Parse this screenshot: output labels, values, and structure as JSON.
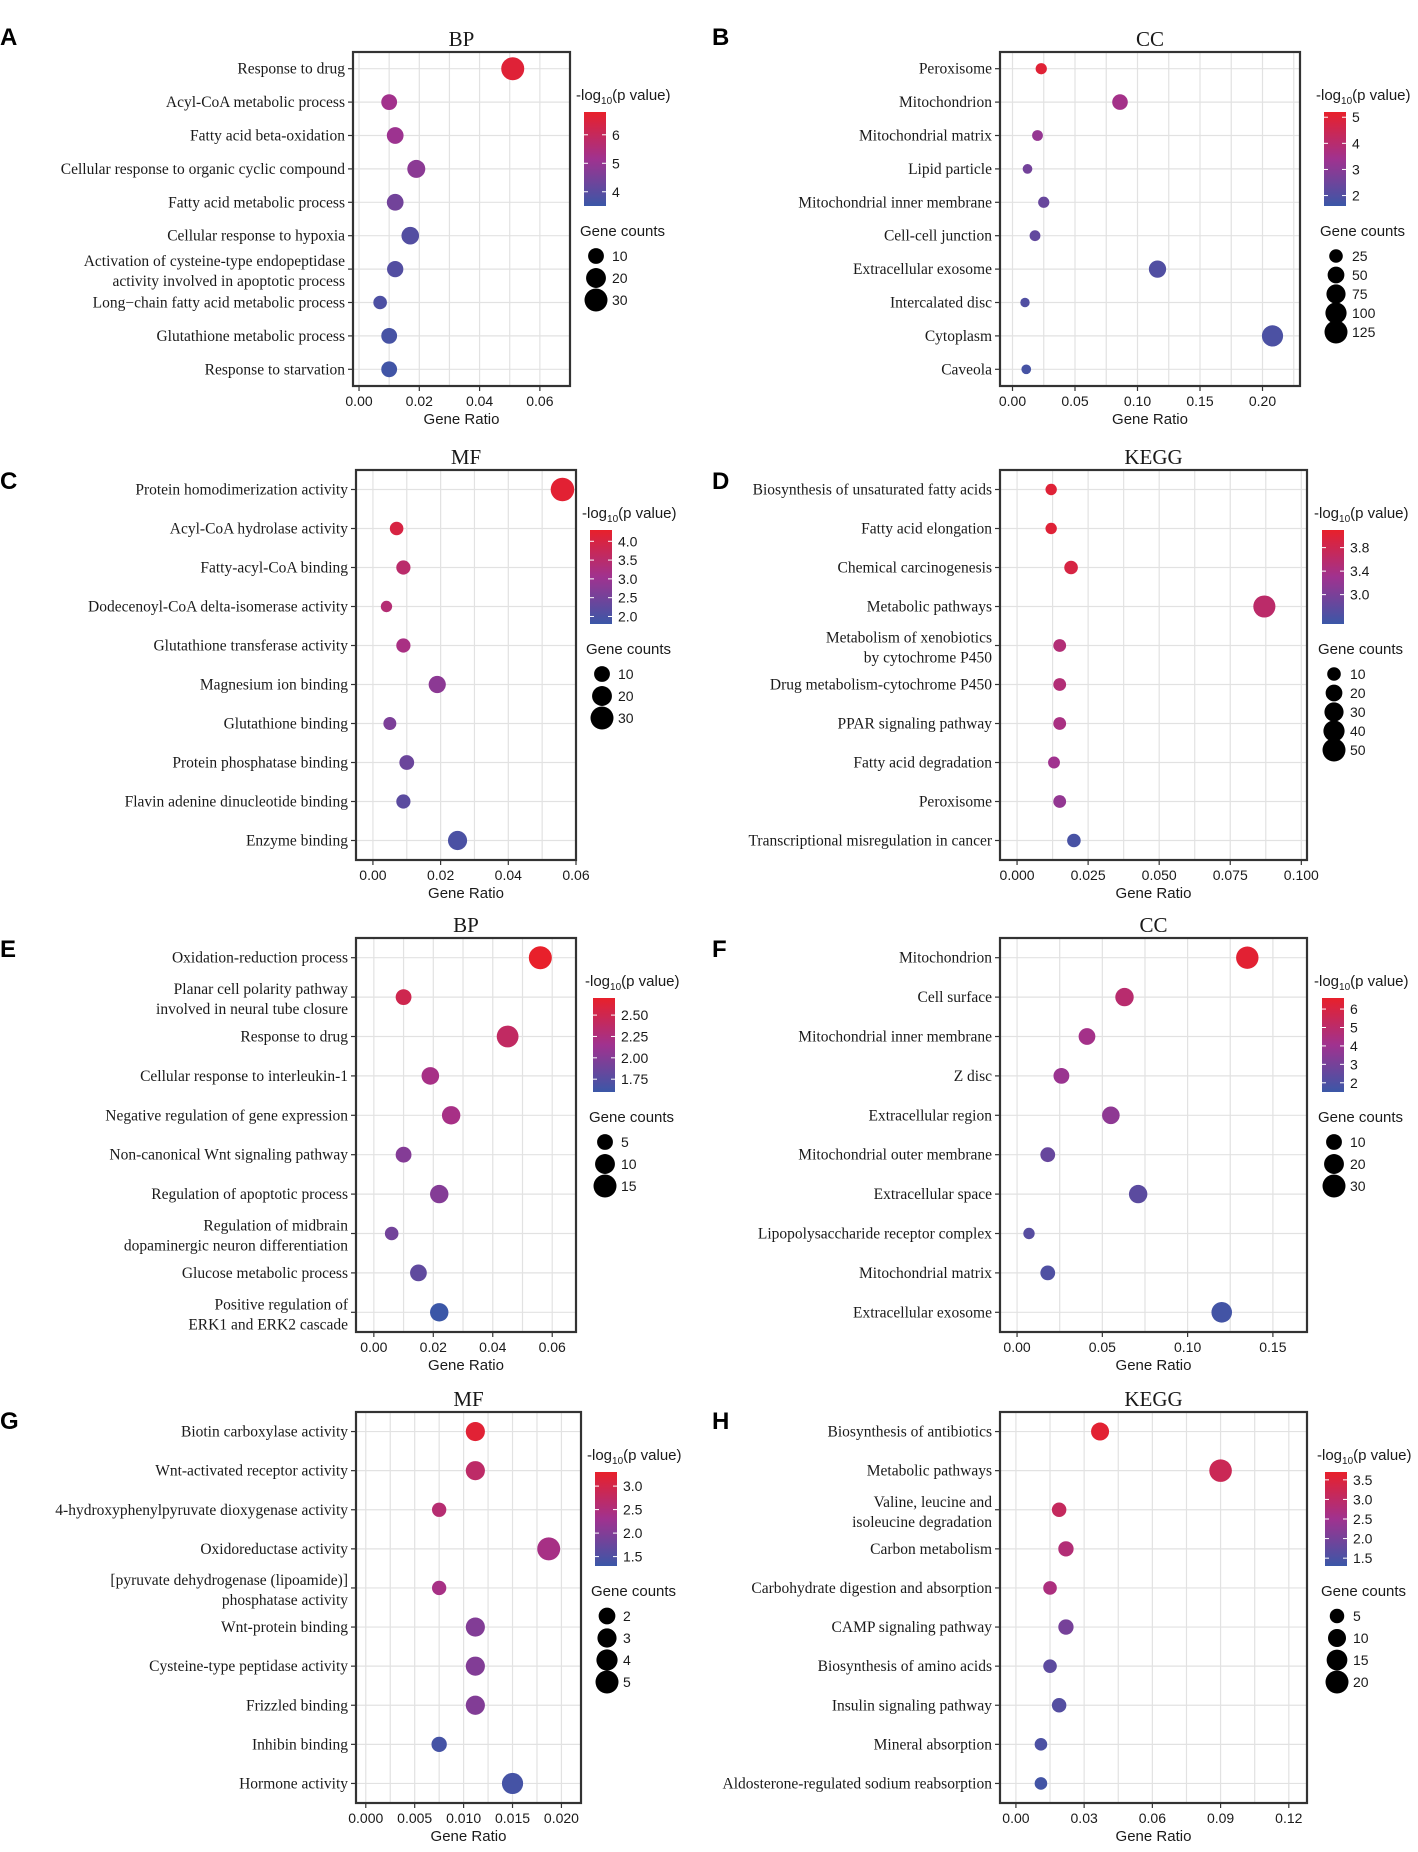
{
  "colors": {
    "low": "#3b57a7",
    "mid": "#a0328f",
    "high": "#e8202b"
  },
  "legend": {
    "color_title": "-log10(p value)",
    "size_title": "Gene counts",
    "x_label": "Gene Ratio"
  },
  "chart_data": [
    {
      "panel": "A",
      "title": "BP",
      "type": "scatter",
      "xlabel": "Gene Ratio",
      "xlim": [
        -0.002,
        0.07
      ],
      "xticks": [
        "0.00",
        "0.02",
        "0.04",
        "0.06"
      ],
      "xtick_values": [
        0,
        0.02,
        0.04,
        0.06
      ],
      "terms": [
        "Response to drug",
        "Acyl-CoA metabolic process",
        "Fatty acid beta-oxidation",
        "Cellular response to organic cyclic compound",
        "Fatty acid metabolic process",
        "Cellular response to hypoxia",
        "Activation of cysteine-type endopeptidase\nactivity involved in apoptotic process",
        "Long−chain fatty acid metabolic process",
        "Glutathione metabolic process",
        "Response to starvation"
      ],
      "x": [
        0.051,
        0.01,
        0.012,
        0.019,
        0.012,
        0.017,
        0.012,
        0.007,
        0.01,
        0.01
      ],
      "count": [
        30,
        10,
        12,
        15,
        12,
        14,
        11,
        6,
        10,
        10
      ],
      "neglog10p": [
        6.6,
        5.2,
        5.1,
        4.8,
        4.4,
        3.9,
        3.9,
        3.8,
        3.7,
        3.6
      ],
      "color_range": [
        3.5,
        6.8
      ],
      "color_ticks": [
        4,
        5,
        6
      ],
      "size_ticks": [
        10,
        20,
        30
      ]
    },
    {
      "panel": "B",
      "title": "CC",
      "type": "scatter",
      "xlabel": "Gene Ratio",
      "xlim": [
        -0.01,
        0.23
      ],
      "xticks": [
        "0.00",
        "0.05",
        "0.10",
        "0.15",
        "0.20"
      ],
      "xtick_values": [
        0,
        0.05,
        0.1,
        0.15,
        0.2
      ],
      "terms": [
        "Peroxisome",
        "Mitochondrion",
        "Mitochondrial matrix",
        "Lipid particle",
        "Mitochondrial inner membrane",
        "Cell-cell junction",
        "Extracellular exosome",
        "Intercalated disc",
        "Cytoplasm",
        "Caveola"
      ],
      "x": [
        0.023,
        0.086,
        0.02,
        0.012,
        0.025,
        0.018,
        0.116,
        0.01,
        0.208,
        0.011
      ],
      "count": [
        12,
        40,
        10,
        6,
        12,
        10,
        55,
        5,
        100,
        6
      ],
      "neglog10p": [
        5.0,
        3.5,
        3.2,
        2.6,
        2.4,
        2.3,
        2.0,
        2.0,
        1.9,
        1.8
      ],
      "color_range": [
        1.6,
        5.2
      ],
      "color_ticks": [
        2,
        3,
        4,
        5
      ],
      "size_ticks": [
        25,
        50,
        75,
        100,
        125
      ]
    },
    {
      "panel": "C",
      "title": "MF",
      "type": "scatter",
      "xlabel": "Gene Ratio",
      "xlim": [
        -0.005,
        0.06
      ],
      "xticks": [
        "0.00",
        "0.02",
        "0.04",
        "0.06"
      ],
      "xtick_values": [
        0,
        0.02,
        0.04,
        0.06
      ],
      "terms": [
        "Protein homodimerization activity",
        "Acyl-CoA hydrolase activity",
        "Fatty-acyl-CoA binding",
        "Dodecenoyl-CoA delta-isomerase activity",
        "Glutathione transferase activity",
        "Magnesium ion binding",
        "Glutathione binding",
        "Protein phosphatase binding",
        "Flavin adenine dinucleotide binding",
        "Enzyme binding"
      ],
      "x": [
        0.056,
        0.007,
        0.009,
        0.004,
        0.009,
        0.019,
        0.005,
        0.01,
        0.009,
        0.025
      ],
      "count": [
        32,
        6,
        7,
        3,
        7,
        13,
        5,
        8,
        7,
        18
      ],
      "neglog10p": [
        4.2,
        4.0,
        3.5,
        3.4,
        3.2,
        2.8,
        2.6,
        2.4,
        2.2,
        2.0
      ],
      "color_range": [
        1.8,
        4.3
      ],
      "color_ticks": [
        "2.0",
        "2.5",
        "3.0",
        "3.5",
        "4.0"
      ],
      "size_ticks": [
        10,
        20,
        30
      ]
    },
    {
      "panel": "D",
      "title": "KEGG",
      "type": "scatter",
      "xlabel": "Gene Ratio",
      "xlim": [
        -0.006,
        0.102
      ],
      "xticks": [
        "0.000",
        "0.025",
        "0.050",
        "0.075",
        "0.100"
      ],
      "xtick_values": [
        0,
        0.025,
        0.05,
        0.075,
        0.1
      ],
      "terms": [
        "Biosynthesis of unsaturated fatty acids",
        "Fatty acid elongation",
        "Chemical carcinogenesis",
        "Metabolic pathways",
        "Metabolism of xenobiotics\nby cytochrome P450",
        "Drug metabolism-cytochrome P450",
        "PPAR signaling pathway",
        "Fatty acid degradation",
        "Peroxisome",
        "Transcriptional misregulation in cancer"
      ],
      "x": [
        0.012,
        0.012,
        0.019,
        0.087,
        0.015,
        0.015,
        0.015,
        0.013,
        0.015,
        0.02
      ],
      "count": [
        5,
        5,
        10,
        45,
        8,
        8,
        8,
        6,
        8,
        10
      ],
      "neglog10p": [
        4.0,
        4.0,
        3.9,
        3.6,
        3.5,
        3.5,
        3.4,
        3.3,
        3.2,
        2.6
      ],
      "color_range": [
        2.5,
        4.1
      ],
      "color_ticks": [
        "3.0",
        "3.4",
        "3.8"
      ],
      "size_ticks": [
        10,
        20,
        30,
        40,
        50
      ]
    },
    {
      "panel": "E",
      "title": "BP",
      "type": "scatter",
      "xlabel": "Gene Ratio",
      "xlim": [
        -0.006,
        0.068
      ],
      "xticks": [
        "0.00",
        "0.02",
        "0.04",
        "0.06"
      ],
      "xtick_values": [
        0,
        0.02,
        0.04,
        0.06
      ],
      "terms": [
        "Oxidation-reduction process",
        "Planar cell polarity pathway\ninvolved in neural tube closure",
        "Response to drug",
        "Cellular response to interleukin-1",
        "Negative regulation of gene expression",
        "Non-canonical Wnt signaling pathway",
        "Regulation of apoptotic process",
        "Regulation of midbrain\ndopaminergic neuron differentiation",
        "Glucose metabolic process",
        "Positive regulation of\nERK1 and ERK2 cascade"
      ],
      "x": [
        0.056,
        0.01,
        0.045,
        0.019,
        0.026,
        0.01,
        0.022,
        0.006,
        0.015,
        0.022
      ],
      "count": [
        15,
        5,
        13,
        7,
        8,
        5,
        8,
        3,
        6,
        8
      ],
      "neglog10p": [
        2.7,
        2.5,
        2.4,
        2.2,
        2.2,
        2.0,
        2.0,
        1.9,
        1.8,
        1.6
      ],
      "color_range": [
        1.6,
        2.7
      ],
      "color_ticks": [
        "1.75",
        "2.00",
        "2.25",
        "2.50"
      ],
      "size_ticks": [
        5,
        10,
        15
      ]
    },
    {
      "panel": "F",
      "title": "CC",
      "type": "scatter",
      "xlabel": "Gene Ratio",
      "xlim": [
        -0.01,
        0.17
      ],
      "xticks": [
        "0.00",
        "0.05",
        "0.10",
        "0.15"
      ],
      "xtick_values": [
        0,
        0.05,
        0.1,
        0.15
      ],
      "terms": [
        "Mitochondrion",
        "Cell surface",
        "Mitochondrial inner membrane",
        "Z disc",
        "Extracellular region",
        "Mitochondrial outer membrane",
        "Extracellular space",
        "Lipopolysaccharide receptor complex",
        "Mitochondrial matrix",
        "Extracellular exosome"
      ],
      "x": [
        0.135,
        0.063,
        0.041,
        0.026,
        0.055,
        0.018,
        0.071,
        0.007,
        0.018,
        0.12
      ],
      "count": [
        28,
        16,
        12,
        10,
        14,
        8,
        16,
        3,
        8,
        22
      ],
      "neglog10p": [
        6.4,
        4.9,
        4.2,
        3.9,
        3.6,
        2.6,
        2.3,
        2.2,
        2.0,
        1.7
      ],
      "color_range": [
        1.5,
        6.6
      ],
      "color_ticks": [
        2,
        3,
        4,
        5,
        6
      ],
      "size_ticks": [
        10,
        20,
        30
      ]
    },
    {
      "panel": "G",
      "title": "MF",
      "type": "scatter",
      "xlabel": "Gene Ratio",
      "xlim": [
        -0.001,
        0.022
      ],
      "xticks": [
        "0.000",
        "0.005",
        "0.010",
        "0.015",
        "0.020"
      ],
      "xtick_values": [
        0,
        0.005,
        0.01,
        0.015,
        0.02
      ],
      "terms": [
        "Biotin carboxylase activity",
        "Wnt-activated receptor activity",
        "4-hydroxyphenylpyruvate dioxygenase activity",
        "Oxidoreductase activity",
        "[pyruvate dehydrogenase (lipoamide)]\nphosphatase activity",
        "Wnt-protein binding",
        "Cysteine-type peptidase activity",
        "Frizzled binding",
        "Inhibin binding",
        "Hormone activity"
      ],
      "x": [
        0.0112,
        0.0112,
        0.0075,
        0.0187,
        0.0075,
        0.0112,
        0.0112,
        0.0112,
        0.0075,
        0.015
      ],
      "count": [
        3,
        3,
        1.2,
        5,
        1.2,
        3,
        3,
        3,
        1.5,
        4
      ],
      "neglog10p": [
        3.2,
        2.7,
        2.6,
        2.4,
        2.4,
        2.0,
        2.0,
        2.0,
        1.4,
        1.4
      ],
      "color_range": [
        1.3,
        3.3
      ],
      "color_ticks": [
        "1.5",
        "2.0",
        "2.5",
        "3.0"
      ],
      "size_ticks": [
        2,
        3,
        4,
        5
      ]
    },
    {
      "panel": "H",
      "title": "KEGG",
      "type": "scatter",
      "xlabel": "Gene Ratio",
      "xlim": [
        -0.007,
        0.128
      ],
      "xticks": [
        "0.00",
        "0.03",
        "0.06",
        "0.09",
        "0.12"
      ],
      "xtick_values": [
        0,
        0.03,
        0.06,
        0.09,
        0.12
      ],
      "terms": [
        "Biosynthesis of antibiotics",
        "Metabolic pathways",
        "Valine, leucine and\nisoleucine degradation",
        "Carbon metabolism",
        "Carbohydrate digestion and absorption",
        "CAMP signaling pathway",
        "Biosynthesis of amino acids",
        "Insulin signaling pathway",
        "Mineral absorption",
        "Aldosterone-regulated sodium reabsorption"
      ],
      "x": [
        0.037,
        0.09,
        0.019,
        0.022,
        0.015,
        0.022,
        0.015,
        0.019,
        0.011,
        0.011
      ],
      "count": [
        10,
        19,
        5,
        6,
        4,
        6,
        4,
        5,
        3,
        3
      ],
      "neglog10p": [
        3.6,
        3.2,
        3.1,
        2.8,
        2.7,
        2.0,
        1.7,
        1.6,
        1.5,
        1.4
      ],
      "color_range": [
        1.3,
        3.7
      ],
      "color_ticks": [
        "1.5",
        "2.0",
        "2.5",
        "3.0",
        "3.5"
      ],
      "size_ticks": [
        5,
        10,
        15,
        20
      ]
    }
  ]
}
